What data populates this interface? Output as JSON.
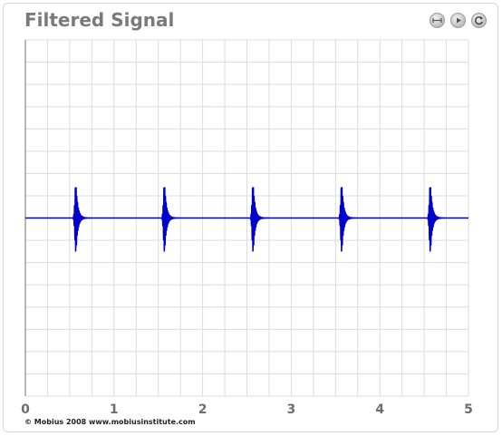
{
  "title": "Filtered Signal",
  "controls": [
    {
      "name": "fit-width-button",
      "icon": "horizontal-fit-icon"
    },
    {
      "name": "play-button",
      "icon": "play-icon"
    },
    {
      "name": "reset-button",
      "icon": "reset-icon"
    }
  ],
  "footer": {
    "copyright": "© Mobius 2008 www.mobiusinstitute.com"
  },
  "colors": {
    "signal": "#0000cc",
    "grid": "#dcdcdc",
    "title": "#7a7a7a",
    "tick": "#6e6e6e"
  },
  "chart_data": {
    "type": "line",
    "title": "Filtered Signal",
    "xlabel": "",
    "ylabel": "",
    "xlim": [
      0,
      5
    ],
    "ylim": [
      -1,
      1
    ],
    "x_ticks": [
      "0",
      "1",
      "2",
      "3",
      "4",
      "5"
    ],
    "grid": true,
    "series": [
      {
        "color": "#0000cc",
        "burst_times": [
          0.57,
          1.57,
          2.57,
          3.57,
          4.57
        ],
        "burst_peak_amplitude": 0.2,
        "burst_frequency_cycles_per_unit": 120,
        "decay_rate_per_unit": 45
      }
    ]
  }
}
